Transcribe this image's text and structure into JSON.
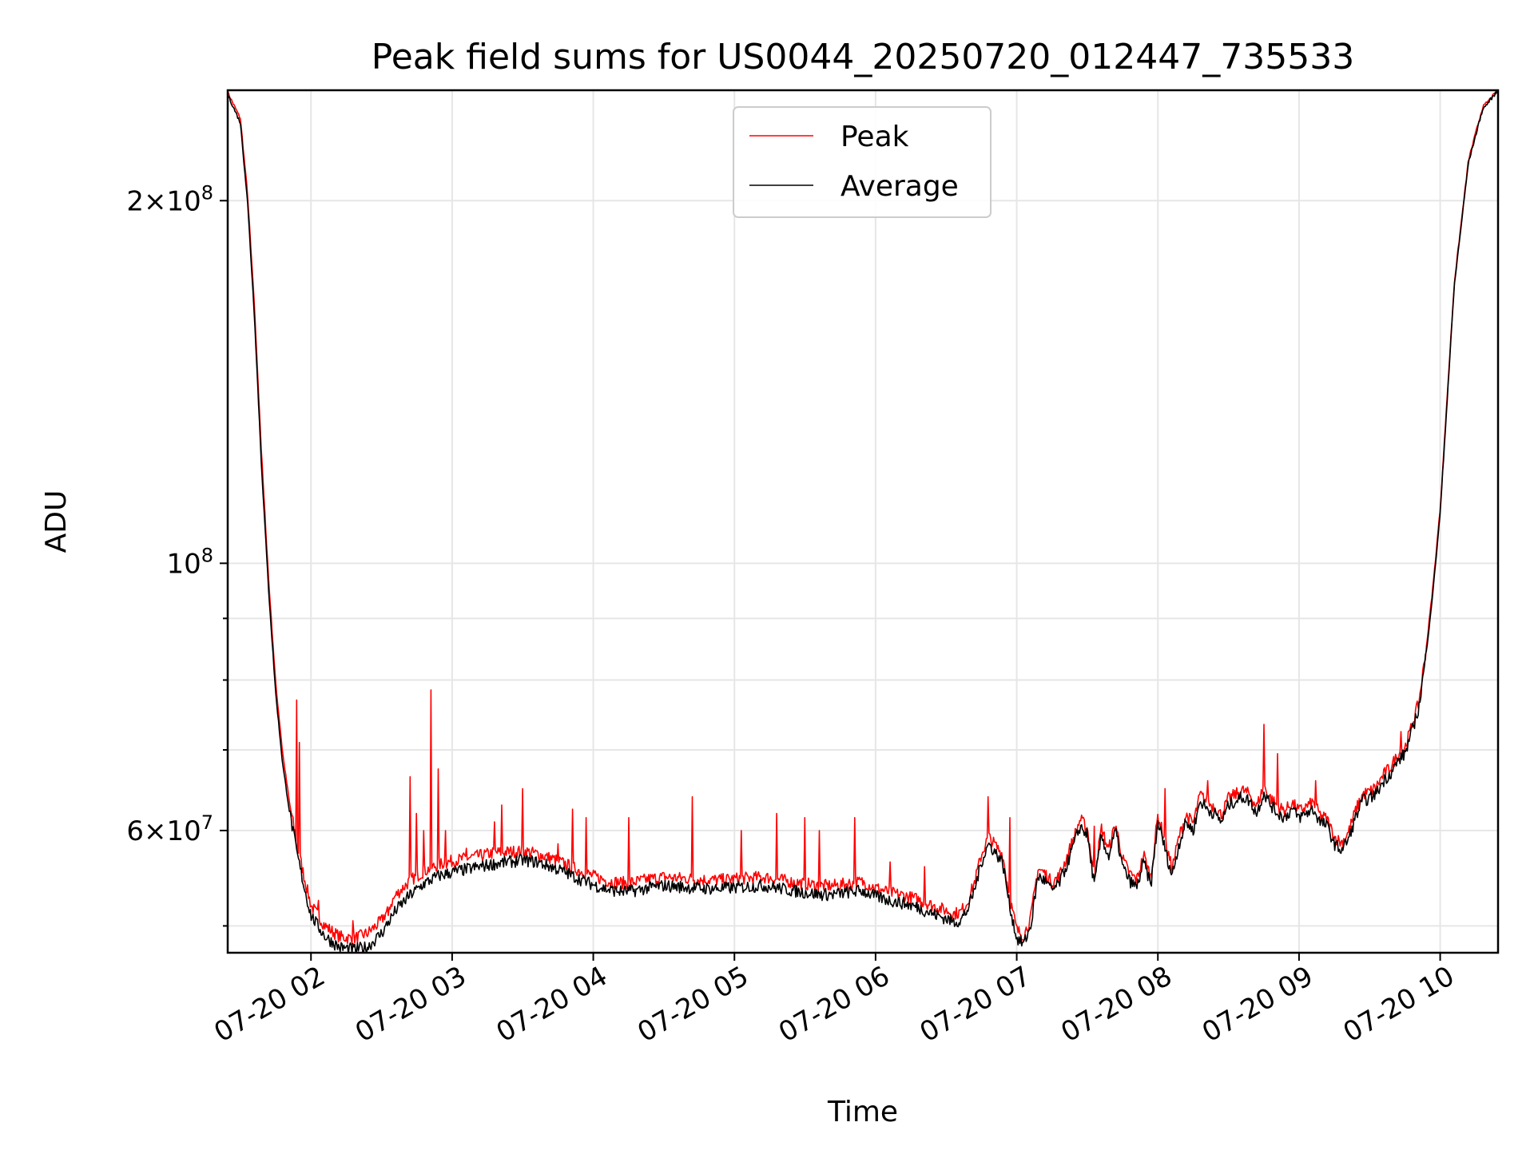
{
  "chart_data": {
    "type": "line",
    "title": "Peak field sums for US0044_20250720_012447_735533",
    "xlabel": "Time",
    "ylabel": "ADU",
    "y_scale": "log",
    "x_unit": "hours since 07-20 00:00 (UTC, dated 2025-07-20)",
    "xlim": [
      1.41,
      10.41
    ],
    "ylim": [
      47500000,
      247000000
    ],
    "grid": true,
    "legend": {
      "placement": "upper-center",
      "entries": [
        "Peak",
        "Average"
      ]
    },
    "x_ticks": [
      {
        "value": 2,
        "label": "07-20 02"
      },
      {
        "value": 3,
        "label": "07-20 03"
      },
      {
        "value": 4,
        "label": "07-20 04"
      },
      {
        "value": 5,
        "label": "07-20 05"
      },
      {
        "value": 6,
        "label": "07-20 06"
      },
      {
        "value": 7,
        "label": "07-20 07"
      },
      {
        "value": 8,
        "label": "07-20 08"
      },
      {
        "value": 9,
        "label": "07-20 09"
      },
      {
        "value": 10,
        "label": "07-20 10"
      }
    ],
    "y_major_ticks": [
      {
        "value": 60000000,
        "base": "6",
        "exp": "7",
        "sep": "×"
      },
      {
        "value": 100000000,
        "base": "",
        "exp": "8",
        "sep": ""
      },
      {
        "value": 200000000,
        "base": "2",
        "exp": "8",
        "sep": "×"
      }
    ],
    "y_minor_ticks": [
      50000000,
      70000000,
      80000000,
      90000000
    ],
    "series": [
      {
        "name": "Average",
        "color": "#000000",
        "x": [
          1.41,
          1.5,
          1.55,
          1.6,
          1.65,
          1.7,
          1.75,
          1.8,
          1.85,
          1.9,
          1.95,
          2.0,
          2.1,
          2.2,
          2.3,
          2.4,
          2.5,
          2.6,
          2.7,
          2.8,
          2.9,
          3.0,
          3.1,
          3.2,
          3.3,
          3.4,
          3.5,
          3.6,
          3.7,
          3.8,
          3.9,
          4.0,
          4.1,
          4.2,
          4.3,
          4.4,
          4.5,
          4.6,
          4.7,
          4.8,
          4.9,
          5.0,
          5.1,
          5.2,
          5.3,
          5.4,
          5.5,
          5.6,
          5.7,
          5.8,
          5.9,
          6.0,
          6.1,
          6.2,
          6.3,
          6.4,
          6.5,
          6.55,
          6.6,
          6.65,
          6.7,
          6.75,
          6.8,
          6.85,
          6.9,
          6.95,
          7.0,
          7.05,
          7.1,
          7.15,
          7.2,
          7.25,
          7.3,
          7.35,
          7.4,
          7.45,
          7.5,
          7.55,
          7.6,
          7.65,
          7.7,
          7.75,
          7.8,
          7.85,
          7.9,
          7.95,
          8.0,
          8.05,
          8.1,
          8.15,
          8.2,
          8.25,
          8.3,
          8.35,
          8.4,
          8.45,
          8.5,
          8.55,
          8.6,
          8.65,
          8.7,
          8.75,
          8.8,
          8.85,
          8.9,
          8.95,
          9.0,
          9.05,
          9.1,
          9.15,
          9.2,
          9.25,
          9.3,
          9.35,
          9.4,
          9.45,
          9.5,
          9.55,
          9.6,
          9.65,
          9.7,
          9.75,
          9.8,
          9.85,
          9.9,
          9.95,
          10.0,
          10.1,
          10.2,
          10.3,
          10.41
        ],
        "y": [
          245000000,
          232000000,
          200000000,
          160000000,
          120000000,
          95000000,
          78000000,
          68000000,
          62000000,
          57500000,
          54000000,
          51000000,
          49000000,
          48000000,
          47800000,
          48000000,
          49300000,
          51500000,
          53000000,
          54200000,
          55000000,
          55400000,
          55700000,
          56000000,
          56300000,
          56500000,
          56700000,
          56500000,
          56000000,
          55400000,
          54700000,
          54100000,
          53600000,
          53400000,
          53500000,
          53800000,
          54000000,
          53900000,
          53800000,
          53700000,
          53700000,
          53800000,
          53900000,
          54000000,
          53800000,
          53500000,
          53300000,
          53100000,
          53100000,
          53300000,
          53500000,
          52900000,
          52500000,
          52200000,
          51800000,
          51200000,
          50700000,
          50400000,
          50500000,
          51500000,
          53500000,
          56500000,
          58500000,
          57500000,
          56500000,
          52000000,
          48800000,
          48300000,
          50000000,
          55000000,
          54500000,
          53500000,
          54200000,
          56000000,
          58200000,
          60500000,
          59500000,
          54000000,
          59500000,
          57000000,
          60000000,
          56000000,
          54500000,
          53800000,
          56500000,
          54000000,
          61000000,
          58000000,
          55000000,
          58500000,
          61000000,
          60000000,
          63500000,
          62500000,
          62000000,
          61000000,
          63000000,
          63500000,
          64000000,
          63500000,
          62000000,
          64500000,
          63000000,
          62000000,
          61500000,
          62500000,
          61500000,
          62000000,
          62500000,
          61000000,
          60500000,
          58500000,
          57800000,
          59000000,
          61500000,
          63500000,
          63800000,
          64500000,
          66000000,
          67000000,
          68500000,
          69500000,
          72500000,
          76000000,
          84000000,
          95000000,
          110000000,
          170000000,
          215000000,
          238000000,
          247000000
        ]
      },
      {
        "name": "Peak",
        "color": "#ff0000",
        "x": [
          1.41,
          1.5,
          1.55,
          1.6,
          1.65,
          1.7,
          1.75,
          1.8,
          1.85,
          1.9,
          1.95,
          2.0,
          2.1,
          2.2,
          2.3,
          2.4,
          2.5,
          2.6,
          2.7,
          2.8,
          2.9,
          3.0,
          3.1,
          3.2,
          3.3,
          3.4,
          3.5,
          3.6,
          3.7,
          3.8,
          3.9,
          4.0,
          4.1,
          4.2,
          4.3,
          4.4,
          4.5,
          4.6,
          4.7,
          4.8,
          4.9,
          5.0,
          5.1,
          5.2,
          5.3,
          5.4,
          5.5,
          5.6,
          5.7,
          5.8,
          5.9,
          6.0,
          6.1,
          6.2,
          6.3,
          6.4,
          6.5,
          6.55,
          6.6,
          6.65,
          6.7,
          6.75,
          6.8,
          6.85,
          6.9,
          6.95,
          7.0,
          7.05,
          7.1,
          7.15,
          7.2,
          7.25,
          7.3,
          7.35,
          7.4,
          7.45,
          7.5,
          7.55,
          7.6,
          7.65,
          7.7,
          7.75,
          7.8,
          7.85,
          7.9,
          7.95,
          8.0,
          8.05,
          8.1,
          8.15,
          8.2,
          8.25,
          8.3,
          8.35,
          8.4,
          8.45,
          8.5,
          8.55,
          8.6,
          8.65,
          8.7,
          8.75,
          8.8,
          8.85,
          8.9,
          8.95,
          9.0,
          9.05,
          9.1,
          9.15,
          9.2,
          9.25,
          9.3,
          9.35,
          9.4,
          9.45,
          9.5,
          9.55,
          9.6,
          9.65,
          9.7,
          9.75,
          9.8,
          9.85,
          9.9,
          9.95,
          10.0,
          10.1,
          10.2,
          10.3,
          10.41
        ],
        "y": [
          246000000,
          234000000,
          203000000,
          163000000,
          123000000,
          97000000,
          79500000,
          69500000,
          63000000,
          58500000,
          55000000,
          52000000,
          50000000,
          49000000,
          48800000,
          49300000,
          50500000,
          53000000,
          54500000,
          55500000,
          56200000,
          56600000,
          56900000,
          57200000,
          57500000,
          57600000,
          57700000,
          57400000,
          56900000,
          56300000,
          55600000,
          55000000,
          54500000,
          54300000,
          54400000,
          54700000,
          54900000,
          54800000,
          54700000,
          54600000,
          54600000,
          54700000,
          54800000,
          54900000,
          54700000,
          54400000,
          54200000,
          54000000,
          54000000,
          54200000,
          54400000,
          53800000,
          53300000,
          53000000,
          52600000,
          52000000,
          51500000,
          51200000,
          51300000,
          52300000,
          54300000,
          57300000,
          59300000,
          58300000,
          57300000,
          52800000,
          49600000,
          49100000,
          50800000,
          55800000,
          55300000,
          54300000,
          55000000,
          56800000,
          59000000,
          61300000,
          60300000,
          54800000,
          60300000,
          57800000,
          60800000,
          56800000,
          55300000,
          54600000,
          57300000,
          54800000,
          61800000,
          58800000,
          55800000,
          59300000,
          61800000,
          60800000,
          64300000,
          63300000,
          62800000,
          61800000,
          63800000,
          64300000,
          64800000,
          64300000,
          62800000,
          65300000,
          63800000,
          62800000,
          62300000,
          63300000,
          62300000,
          62800000,
          63300000,
          61800000,
          61300000,
          59300000,
          58600000,
          59800000,
          62300000,
          64300000,
          64600000,
          65300000,
          66800000,
          67800000,
          69300000,
          70300000,
          73300000,
          76800000,
          84800000,
          96000000,
          111000000,
          171000000,
          216000000,
          239000000,
          247000000
        ]
      }
    ],
    "peak_spikes": [
      [
        1.9,
        77000000
      ],
      [
        1.92,
        71000000
      ],
      [
        2.05,
        52500000
      ],
      [
        2.3,
        50500000
      ],
      [
        2.55,
        51000000
      ],
      [
        2.7,
        66500000
      ],
      [
        2.75,
        62000000
      ],
      [
        2.8,
        60000000
      ],
      [
        2.85,
        78500000
      ],
      [
        2.9,
        67500000
      ],
      [
        2.95,
        60000000
      ],
      [
        3.1,
        58000000
      ],
      [
        3.3,
        61000000
      ],
      [
        3.35,
        63000000
      ],
      [
        3.5,
        65000000
      ],
      [
        3.75,
        58500000
      ],
      [
        3.85,
        62500000
      ],
      [
        3.95,
        61500000
      ],
      [
        4.25,
        61500000
      ],
      [
        4.7,
        64000000
      ],
      [
        5.05,
        60000000
      ],
      [
        5.3,
        62000000
      ],
      [
        5.5,
        61500000
      ],
      [
        5.6,
        60000000
      ],
      [
        5.85,
        61500000
      ],
      [
        6.1,
        56500000
      ],
      [
        6.35,
        56000000
      ],
      [
        6.8,
        64000000
      ],
      [
        6.95,
        61500000
      ],
      [
        7.55,
        60500000
      ],
      [
        7.7,
        60000000
      ],
      [
        8.05,
        65000000
      ],
      [
        8.35,
        66000000
      ],
      [
        8.75,
        73500000
      ],
      [
        8.85,
        69500000
      ],
      [
        9.12,
        66000000
      ],
      [
        9.72,
        72500000
      ]
    ]
  }
}
